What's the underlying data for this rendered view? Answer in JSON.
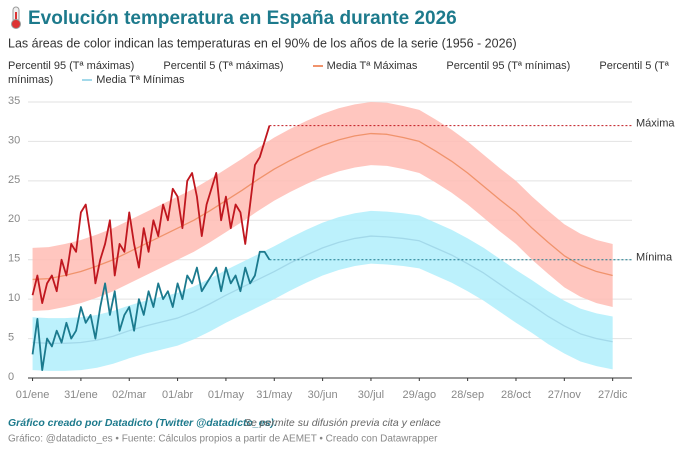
{
  "chart_data": {
    "type": "line",
    "title": "Evolución temperatura en España durante 2026",
    "subtitle": "Las áreas de color indican las temperaturas en el 90% de los años de la serie (1956 - 2026)",
    "credit": "Gráfico creado por Datadicto (Twitter @datadicto_es).",
    "credit_note": "Se permite su difusión previa cita y enlace",
    "source": "Gráfico: @datadicto_es • Fuente: Cálculos propios a partir de AEMET • Creado con Datawrapper",
    "x": [
      0,
      10,
      20,
      30,
      40,
      50,
      60,
      70,
      80,
      90,
      100,
      110,
      120,
      130,
      140,
      150,
      160,
      170,
      180,
      190,
      200,
      210,
      220,
      230,
      240,
      250,
      260,
      270,
      280,
      290,
      300,
      310,
      320,
      330,
      340,
      350,
      360
    ],
    "xlim": [
      -14,
      372
    ],
    "xticks": [
      {
        "value": 0,
        "label": "01/ene"
      },
      {
        "value": 30,
        "label": "31/ene"
      },
      {
        "value": 60,
        "label": "02/mar"
      },
      {
        "value": 90,
        "label": "01/abr"
      },
      {
        "value": 120,
        "label": "01/may"
      },
      {
        "value": 150,
        "label": "31/may"
      },
      {
        "value": 180,
        "label": "30/jun"
      },
      {
        "value": 210,
        "label": "30/jul"
      },
      {
        "value": 240,
        "label": "29/ago"
      },
      {
        "value": 270,
        "label": "28/sep"
      },
      {
        "value": 300,
        "label": "28/oct"
      },
      {
        "value": 330,
        "label": "27/nov"
      },
      {
        "value": 360,
        "label": "27/dic"
      }
    ],
    "ylim": [
      0,
      35
    ],
    "yticks": [
      0,
      5,
      10,
      15,
      20,
      25,
      30,
      35
    ],
    "grid": true,
    "series": [
      {
        "name": "Percentil 95 (Tª máximas)",
        "color": "#ffbcb4",
        "values": [
          16.5,
          16.6,
          17,
          17.5,
          18.2,
          19,
          20,
          21,
          22,
          23,
          24,
          25.2,
          26.5,
          27.8,
          29.2,
          30.5,
          31.6,
          32.6,
          33.5,
          34.2,
          34.7,
          35,
          34.9,
          34.5,
          34,
          32.8,
          31.5,
          30,
          28.3,
          26.6,
          25,
          23,
          21.2,
          19.5,
          18.3,
          17.5,
          17
        ]
      },
      {
        "name": "Percentil 5 (Tª máximas)",
        "color": "#ffbcb4",
        "values": [
          8.5,
          8.6,
          9,
          9.5,
          10.2,
          11,
          12,
          13,
          14,
          15,
          16,
          17.2,
          18.5,
          19.8,
          21.2,
          22.5,
          23.6,
          24.6,
          25.5,
          26.2,
          26.7,
          27,
          26.9,
          26.5,
          26,
          24.8,
          23.5,
          22,
          20.3,
          18.6,
          17,
          15,
          13.2,
          11.5,
          10.3,
          9.5,
          9
        ]
      },
      {
        "name": "Media Tª Máximas",
        "color": "#f0936c",
        "values": [
          12.5,
          12.6,
          13,
          13.5,
          14.2,
          15,
          16,
          17,
          18,
          19,
          20,
          21.2,
          22.5,
          23.8,
          25.2,
          26.5,
          27.6,
          28.6,
          29.5,
          30.2,
          30.7,
          31,
          30.9,
          30.5,
          30,
          28.8,
          27.5,
          26,
          24.3,
          22.6,
          21,
          19,
          17.2,
          15.5,
          14.3,
          13.5,
          13
        ]
      },
      {
        "name": "Percentil 95 (Tª mínimas)",
        "color": "#b0eefb",
        "values": [
          7.7,
          7.6,
          7.6,
          7.7,
          8,
          8.5,
          9.2,
          9.8,
          10.3,
          10.8,
          11.6,
          12.6,
          13.7,
          14.7,
          15.7,
          16.7,
          17.8,
          18.8,
          19.7,
          20.4,
          20.9,
          21.2,
          21.1,
          20.9,
          20.6,
          19.7,
          18.8,
          17.7,
          16.5,
          15.1,
          13.7,
          12.4,
          11,
          9.8,
          8.8,
          8.2,
          7.8
        ]
      },
      {
        "name": "Percentil 5 (Tª mínimas)",
        "color": "#b0eefb",
        "values": [
          1,
          0.9,
          0.9,
          1,
          1.3,
          1.8,
          2.5,
          3.1,
          3.6,
          4.1,
          4.9,
          5.9,
          7,
          8,
          9,
          10,
          11.1,
          12.1,
          13,
          13.7,
          14.2,
          14.5,
          14.4,
          14.2,
          13.9,
          13,
          12.1,
          11,
          9.8,
          8.4,
          7,
          5.7,
          4.3,
          3.1,
          2.1,
          1.5,
          1.1
        ]
      },
      {
        "name": "Media Tª Mínimas",
        "color": "#a3d9ea",
        "values": [
          4.5,
          4.4,
          4.4,
          4.5,
          4.8,
          5.3,
          6,
          6.6,
          7.1,
          7.6,
          8.4,
          9.4,
          10.5,
          11.5,
          12.5,
          13.5,
          14.6,
          15.6,
          16.5,
          17.2,
          17.7,
          18,
          17.9,
          17.7,
          17.4,
          16.5,
          15.6,
          14.5,
          13.3,
          11.9,
          10.5,
          9.2,
          7.8,
          6.6,
          5.6,
          5,
          4.6
        ]
      },
      {
        "name": "Máxima",
        "color": "#c0171f",
        "x": [
          0,
          3,
          6,
          9,
          12,
          15,
          18,
          21,
          24,
          27,
          30,
          33,
          36,
          39,
          42,
          45,
          48,
          51,
          54,
          57,
          60,
          63,
          66,
          69,
          72,
          75,
          78,
          81,
          84,
          87,
          90,
          93,
          96,
          99,
          102,
          105,
          108,
          111,
          114,
          117,
          120,
          123,
          126,
          129,
          132,
          135,
          138,
          141,
          144,
          147
        ],
        "values": [
          10.5,
          13,
          9.5,
          12,
          13,
          11,
          15,
          13,
          17,
          16,
          21,
          22,
          18,
          12,
          15,
          17,
          20,
          13,
          17,
          16,
          21,
          17,
          14,
          19,
          16,
          20,
          18,
          22,
          20,
          24,
          23,
          19,
          25,
          26,
          23,
          18,
          22,
          24,
          26,
          20,
          23,
          19,
          22,
          21,
          17,
          22,
          27,
          28,
          30,
          32
        ]
      },
      {
        "name": "Mínima",
        "color": "#1b7a8e",
        "x": [
          0,
          3,
          6,
          9,
          12,
          15,
          18,
          21,
          24,
          27,
          30,
          33,
          36,
          39,
          42,
          45,
          48,
          51,
          54,
          57,
          60,
          63,
          66,
          69,
          72,
          75,
          78,
          81,
          84,
          87,
          90,
          93,
          96,
          99,
          102,
          105,
          108,
          111,
          114,
          117,
          120,
          123,
          126,
          129,
          132,
          135,
          138,
          141,
          144,
          147
        ],
        "values": [
          3,
          7.5,
          1,
          5,
          4,
          6,
          4.5,
          7,
          5,
          6,
          9,
          7,
          8,
          5,
          9,
          12,
          8,
          11,
          6,
          8,
          9,
          6,
          10,
          8,
          11,
          9,
          12,
          10,
          11,
          9,
          12,
          10,
          13,
          12,
          14,
          11,
          12,
          13,
          14,
          11,
          14,
          12,
          13,
          11,
          14,
          12,
          13,
          16,
          16,
          15
        ]
      }
    ]
  }
}
